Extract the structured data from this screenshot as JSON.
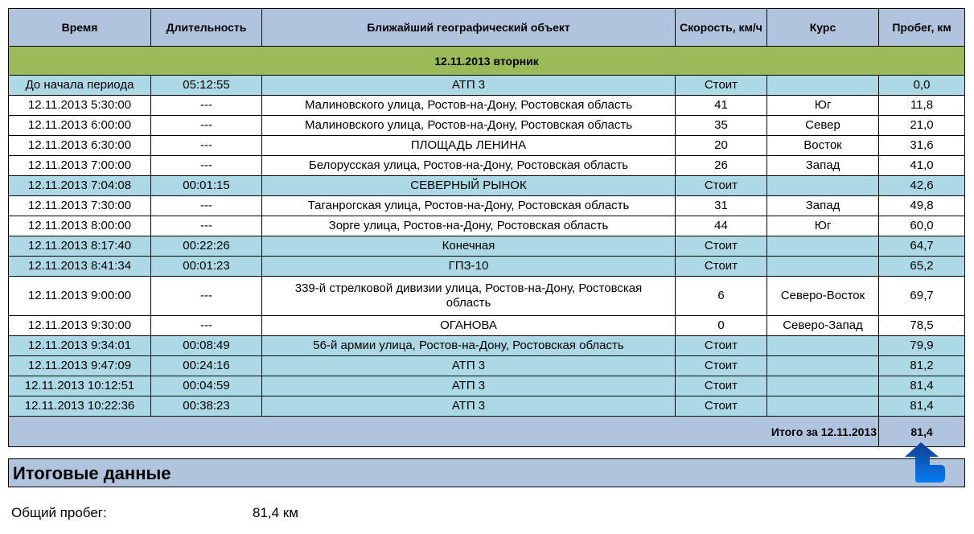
{
  "columns": [
    "Время",
    "Длительность",
    "Ближайший географический объект",
    "Скорость, км/ч",
    "Курс",
    "Пробег, км"
  ],
  "date_header": "12.11.2013 вторник",
  "rows": [
    {
      "time": "До начала периода",
      "duration": "05:12:55",
      "place": "АТП 3",
      "speed": "Стоит",
      "course": "",
      "mileage": "0,0",
      "stop": true
    },
    {
      "time": "12.11.2013 5:30:00",
      "duration": "---",
      "place": "Малиновского улица, Ростов-на-Дону, Ростовская область",
      "speed": "41",
      "course": "Юг",
      "mileage": "11,8",
      "stop": false
    },
    {
      "time": "12.11.2013 6:00:00",
      "duration": "---",
      "place": "Малиновского улица, Ростов-на-Дону, Ростовская область",
      "speed": "35",
      "course": "Север",
      "mileage": "21,0",
      "stop": false
    },
    {
      "time": "12.11.2013 6:30:00",
      "duration": "---",
      "place": "ПЛОЩАДЬ ЛЕНИНА",
      "speed": "20",
      "course": "Восток",
      "mileage": "31,6",
      "stop": false
    },
    {
      "time": "12.11.2013 7:00:00",
      "duration": "---",
      "place": "Белорусская улица, Ростов-на-Дону, Ростовская область",
      "speed": "26",
      "course": "Запад",
      "mileage": "41,0",
      "stop": false
    },
    {
      "time": "12.11.2013 7:04:08",
      "duration": "00:01:15",
      "place": "СЕВЕРНЫЙ РЫНОК",
      "speed": "Стоит",
      "course": "",
      "mileage": "42,6",
      "stop": true
    },
    {
      "time": "12.11.2013 7:30:00",
      "duration": "---",
      "place": "Таганрогская улица, Ростов-на-Дону, Ростовская область",
      "speed": "31",
      "course": "Запад",
      "mileage": "49,8",
      "stop": false
    },
    {
      "time": "12.11.2013 8:00:00",
      "duration": "---",
      "place": "Зорге улица, Ростов-на-Дону, Ростовская область",
      "speed": "44",
      "course": "Юг",
      "mileage": "60,0",
      "stop": false
    },
    {
      "time": "12.11.2013 8:17:40",
      "duration": "00:22:26",
      "place": "Конечная",
      "speed": "Стоит",
      "course": "",
      "mileage": "64,7",
      "stop": true
    },
    {
      "time": "12.11.2013 8:41:34",
      "duration": "00:01:23",
      "place": "ГПЗ-10",
      "speed": "Стоит",
      "course": "",
      "mileage": "65,2",
      "stop": true
    },
    {
      "time": "12.11.2013 9:00:00",
      "duration": "---",
      "place": "339-й стрелковой дивизии улица, Ростов-на-Дону, Ростовская область",
      "speed": "6",
      "course": "Северо-Восток",
      "mileage": "69,7",
      "stop": false
    },
    {
      "time": "12.11.2013 9:30:00",
      "duration": "---",
      "place": "ОГАНОВА",
      "speed": "0",
      "course": "Северо-Запад",
      "mileage": "78,5",
      "stop": false
    },
    {
      "time": "12.11.2013 9:34:01",
      "duration": "00:08:49",
      "place": "56-й армии улица, Ростов-на-Дону, Ростовская область",
      "speed": "Стоит",
      "course": "",
      "mileage": "79,9",
      "stop": true
    },
    {
      "time": "12.11.2013 9:47:09",
      "duration": "00:24:16",
      "place": "АТП 3",
      "speed": "Стоит",
      "course": "",
      "mileage": "81,2",
      "stop": true
    },
    {
      "time": "12.11.2013 10:12:51",
      "duration": "00:04:59",
      "place": "АТП 3",
      "speed": "Стоит",
      "course": "",
      "mileage": "81,4",
      "stop": true
    },
    {
      "time": "12.11.2013 10:22:36",
      "duration": "00:38:23",
      "place": "АТП 3",
      "speed": "Стоит",
      "course": "",
      "mileage": "81,4",
      "stop": true
    }
  ],
  "total": {
    "label": "Итого за 12.11.2013",
    "value": "81,4"
  },
  "summary": {
    "title": "Итоговые данные",
    "label": "Общий пробег:",
    "value": "81,4 км"
  },
  "icons": {
    "scroll_top": "arrow-up-icon",
    "color": "#1a6fd8"
  }
}
